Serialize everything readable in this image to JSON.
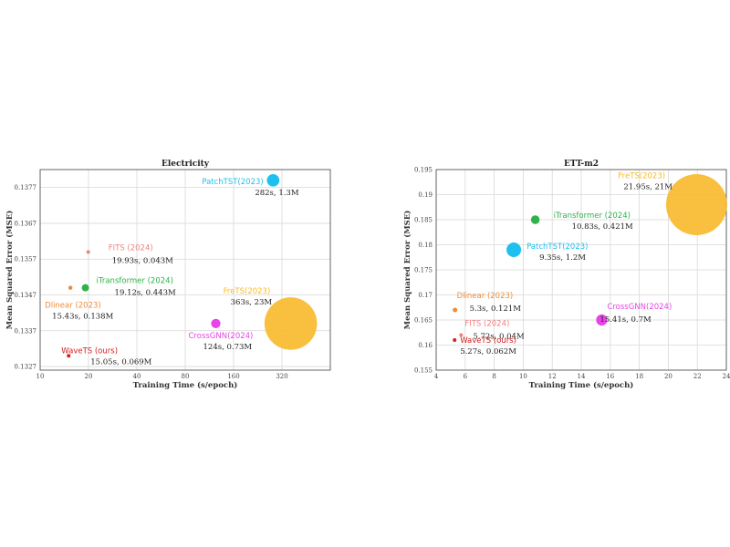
{
  "chart_data": [
    {
      "type": "scatter",
      "title": "Electricity",
      "xlabel": "Training Time (s/epoch)",
      "ylabel": "Mean Squared Error (MSE)",
      "x_scale": "log2",
      "xticks": [
        10,
        20,
        40,
        80,
        160,
        320
      ],
      "xlim": [
        10,
        640
      ],
      "yticks": [
        0.1327,
        0.1337,
        0.1347,
        0.1357,
        0.1367,
        0.1377
      ],
      "ylim": [
        0.1326,
        0.1382
      ],
      "grid": true,
      "points": [
        {
          "name": "PatchTST(2023)",
          "detail": "282s, 1.3M",
          "x": 282,
          "y": 0.1379,
          "params_m": 1.3,
          "color": "#1ec0f0"
        },
        {
          "name": "FITS (2024)",
          "detail": "19.93s, 0.043M",
          "x": 19.93,
          "y": 0.1359,
          "params_m": 0.043,
          "color": "#f08080"
        },
        {
          "name": "iTransformer (2024)",
          "detail": "19.12s, 0.443M",
          "x": 19.12,
          "y": 0.1349,
          "params_m": 0.443,
          "color": "#2fb24a"
        },
        {
          "name": "Dlinear (2023)",
          "detail": "15.43s, 0.138M",
          "x": 15.43,
          "y": 0.1349,
          "params_m": 0.138,
          "color": "#ef8c3a"
        },
        {
          "name": "FreTS(2023)",
          "detail": "363s, 23M",
          "x": 363,
          "y": 0.1339,
          "params_m": 23,
          "color": "#f8b92a"
        },
        {
          "name": "CrossGNN(2024)",
          "detail": "124s, 0.73M",
          "x": 124,
          "y": 0.1339,
          "params_m": 0.73,
          "color": "#e844e8"
        },
        {
          "name": "WaveTS (ours)",
          "detail": "15.05s, 0.069M",
          "x": 15.05,
          "y": 0.133,
          "params_m": 0.069,
          "color": "#d02020"
        }
      ]
    },
    {
      "type": "scatter",
      "title": "ETT-m2",
      "xlabel": "Training Time (s/epoch)",
      "ylabel": "Mean Squared Error (MSE)",
      "x_scale": "linear",
      "xticks": [
        4,
        6,
        8,
        10,
        12,
        14,
        16,
        18,
        20,
        22,
        24
      ],
      "xlim": [
        4,
        24
      ],
      "yticks": [
        0.155,
        0.16,
        0.165,
        0.17,
        0.175,
        0.18,
        0.185,
        0.19,
        0.195
      ],
      "ylim": [
        0.155,
        0.195
      ],
      "grid": true,
      "points": [
        {
          "name": "FreTS(2023)",
          "detail": "21.95s, 21M",
          "x": 21.95,
          "y": 0.188,
          "params_m": 21,
          "color": "#f8b92a"
        },
        {
          "name": "iTransformer (2024)",
          "detail": "10.83s, 0.421M",
          "x": 10.83,
          "y": 0.185,
          "params_m": 0.421,
          "color": "#2fb24a"
        },
        {
          "name": "PatchTST(2023)",
          "detail": "9.35s, 1.2M",
          "x": 9.35,
          "y": 0.179,
          "params_m": 1.2,
          "color": "#1ec0f0"
        },
        {
          "name": "Dlinear (2023)",
          "detail": "5.3s, 0.121M",
          "x": 5.3,
          "y": 0.167,
          "params_m": 0.121,
          "color": "#ef8c3a"
        },
        {
          "name": "CrossGNN(2024)",
          "detail": "15.41s, 0.7M",
          "x": 15.41,
          "y": 0.165,
          "params_m": 0.7,
          "color": "#e844e8"
        },
        {
          "name": "FITS (2024)",
          "detail": "5.72s, 0.04M",
          "x": 5.72,
          "y": 0.162,
          "params_m": 0.04,
          "color": "#f08080"
        },
        {
          "name": "WaveTS (ours)",
          "detail": "5.27s, 0.062M",
          "x": 5.27,
          "y": 0.161,
          "params_m": 0.062,
          "color": "#d02020"
        }
      ]
    }
  ]
}
